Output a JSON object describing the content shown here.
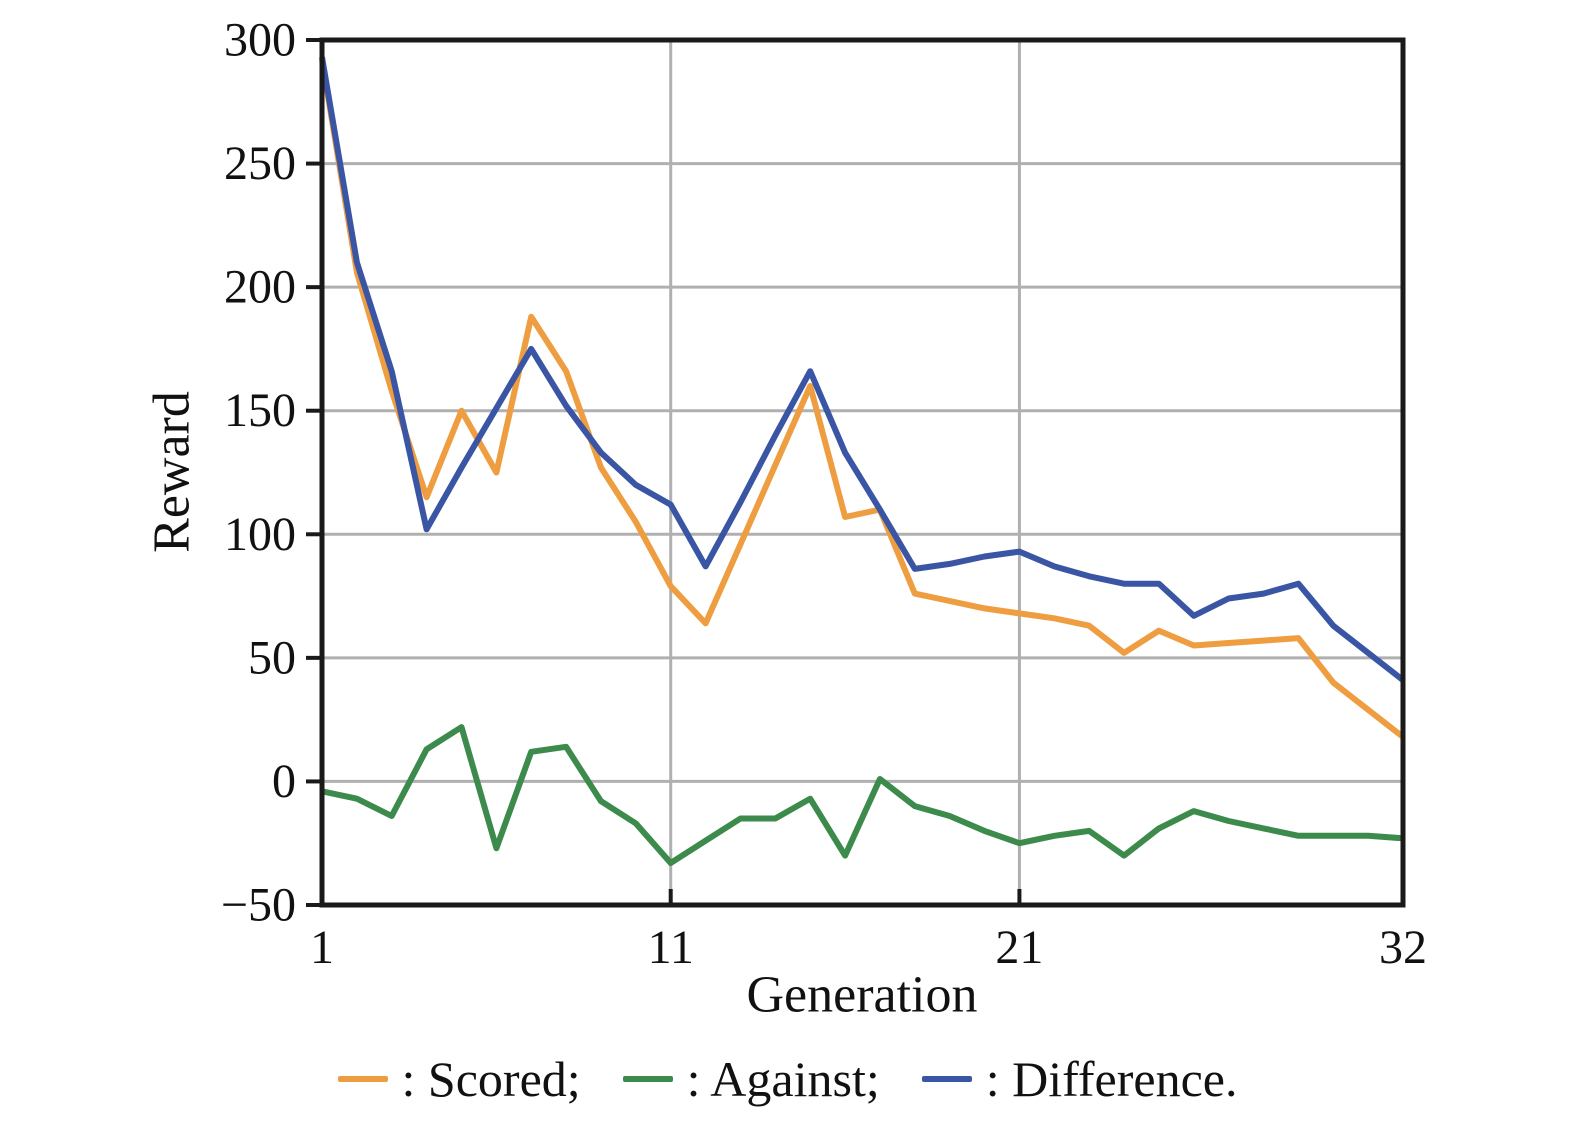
{
  "figure": {
    "background": "#ffffff",
    "frame_color": "#1a1a1a",
    "grid_color": "#b0b0b0"
  },
  "legend": {
    "items": [
      {
        "series": "Scored",
        "label": ": Scored;"
      },
      {
        "series": "Against",
        "label": ": Against;"
      },
      {
        "series": "Difference",
        "label": ": Difference."
      }
    ]
  },
  "chart_data": {
    "type": "line",
    "title": "",
    "xlabel": "Generation",
    "ylabel": "Reward",
    "xlim": [
      1,
      32
    ],
    "ylim": [
      -50,
      300
    ],
    "grid": "on",
    "legend_position": "bottom",
    "xticks": [
      {
        "v": 1,
        "label": "1"
      },
      {
        "v": 11,
        "label": "11"
      },
      {
        "v": 21,
        "label": "21"
      },
      {
        "v": 32,
        "label": "32"
      }
    ],
    "grid_x": [
      11,
      21
    ],
    "yticks": [
      {
        "v": 300,
        "label": "300"
      },
      {
        "v": 250,
        "label": "250"
      },
      {
        "v": 200,
        "label": "200"
      },
      {
        "v": 150,
        "label": "150"
      },
      {
        "v": 100,
        "label": "100"
      },
      {
        "v": 50,
        "label": "50"
      },
      {
        "v": 0,
        "label": "0"
      },
      {
        "v": -50,
        "label": "−50"
      }
    ],
    "x": [
      1,
      2,
      3,
      4,
      5,
      6,
      7,
      8,
      9,
      10,
      11,
      12,
      13,
      14,
      15,
      16,
      17,
      18,
      19,
      20,
      21,
      22,
      23,
      24,
      25,
      26,
      27,
      28,
      29,
      30,
      31,
      32
    ],
    "series": [
      {
        "name": "Scored",
        "color": "#EE9D40",
        "values": [
          292,
          206,
          158,
          115,
          150,
          125,
          188,
          166,
          127,
          105,
          79,
          64,
          96,
          128,
          160,
          107,
          110,
          76,
          73,
          70,
          68,
          66,
          63,
          52,
          61,
          55,
          56,
          57,
          58,
          40,
          29,
          18
        ]
      },
      {
        "name": "Against",
        "color": "#3C8B4C",
        "values": [
          -4,
          -7,
          -14,
          13,
          22,
          -27,
          12,
          14,
          -8,
          -17,
          -33,
          -24,
          -15,
          -15,
          -7,
          -30,
          1,
          -10,
          -14,
          -20,
          -25,
          -22,
          -20,
          -30,
          -19,
          -12,
          -16,
          -19,
          -22,
          -22,
          -22,
          -23
        ]
      },
      {
        "name": "Difference",
        "color": "#3A55A4",
        "values": [
          293,
          210,
          166,
          102,
          127,
          151,
          175,
          152,
          133,
          120,
          112,
          87,
          113,
          140,
          166,
          133,
          110,
          86,
          88,
          91,
          93,
          87,
          83,
          80,
          80,
          67,
          74,
          76,
          80,
          63,
          52,
          41
        ]
      }
    ]
  }
}
